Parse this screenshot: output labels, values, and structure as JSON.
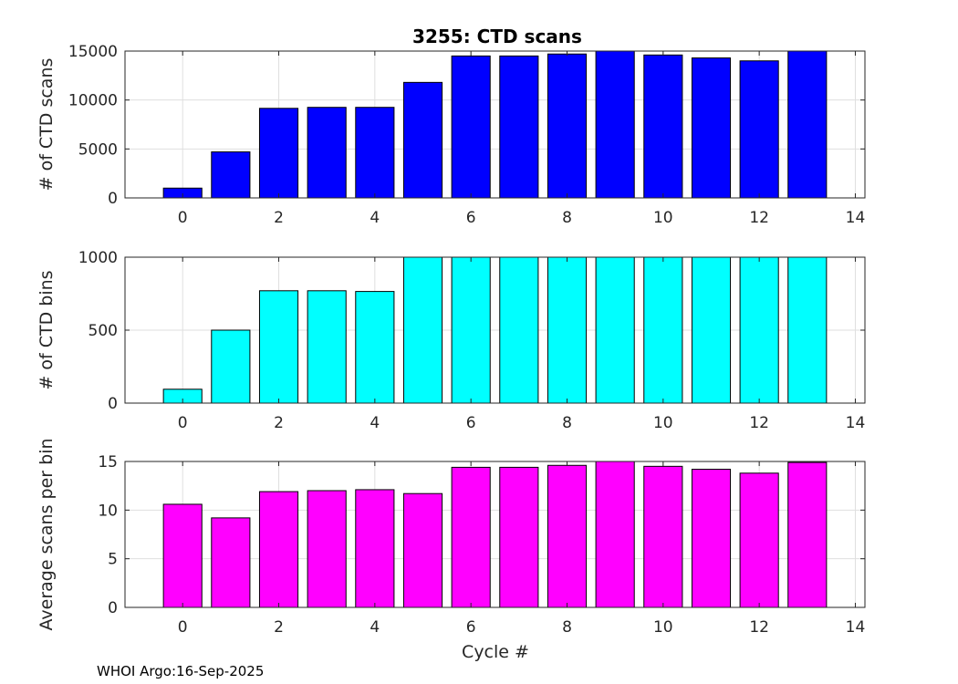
{
  "figure": {
    "title": "3255: CTD scans",
    "xlabel": "Cycle #",
    "footer": "WHOI Argo:16-Sep-2025"
  },
  "chart_data": [
    {
      "type": "bar",
      "id": "scans",
      "title": "3255: CTD scans",
      "xlabel": "",
      "ylabel": "# of CTD scans",
      "color": "#0000ff",
      "x": [
        0,
        1,
        2,
        3,
        4,
        5,
        6,
        7,
        8,
        9,
        10,
        11,
        12,
        13
      ],
      "values": [
        1000,
        4700,
        9150,
        9250,
        9250,
        11800,
        14500,
        14500,
        14700,
        15000,
        14600,
        14300,
        14000,
        15000
      ],
      "xlim": [
        -1.2,
        14.2
      ],
      "ylim": [
        0,
        15000
      ],
      "xticks": [
        0,
        2,
        4,
        6,
        8,
        10,
        12,
        14
      ],
      "yticks": [
        0,
        5000,
        10000,
        15000
      ],
      "grid": true
    },
    {
      "type": "bar",
      "id": "bins",
      "title": "",
      "xlabel": "",
      "ylabel": "# of CTD bins",
      "color": "#00ffff",
      "x": [
        0,
        1,
        2,
        3,
        4,
        5,
        6,
        7,
        8,
        9,
        10,
        11,
        12,
        13
      ],
      "values": [
        95,
        500,
        770,
        770,
        765,
        1000,
        1000,
        1000,
        1000,
        1000,
        1000,
        1000,
        1000,
        1000
      ],
      "xlim": [
        -1.2,
        14.2
      ],
      "ylim": [
        0,
        1000
      ],
      "xticks": [
        0,
        2,
        4,
        6,
        8,
        10,
        12,
        14
      ],
      "yticks": [
        0,
        500,
        1000
      ],
      "grid": true
    },
    {
      "type": "bar",
      "id": "ratio",
      "title": "",
      "xlabel": "Cycle #",
      "ylabel": "Average scans per bin",
      "color": "#ff00ff",
      "x": [
        0,
        1,
        2,
        3,
        4,
        5,
        6,
        7,
        8,
        9,
        10,
        11,
        12,
        13
      ],
      "values": [
        10.6,
        9.2,
        11.9,
        12.0,
        12.1,
        11.7,
        14.4,
        14.4,
        14.6,
        15.0,
        14.5,
        14.2,
        13.8,
        14.9
      ],
      "xlim": [
        -1.2,
        14.2
      ],
      "ylim": [
        0,
        15
      ],
      "xticks": [
        0,
        2,
        4,
        6,
        8,
        10,
        12,
        14
      ],
      "yticks": [
        0,
        5,
        10,
        15
      ],
      "grid": true
    }
  ]
}
